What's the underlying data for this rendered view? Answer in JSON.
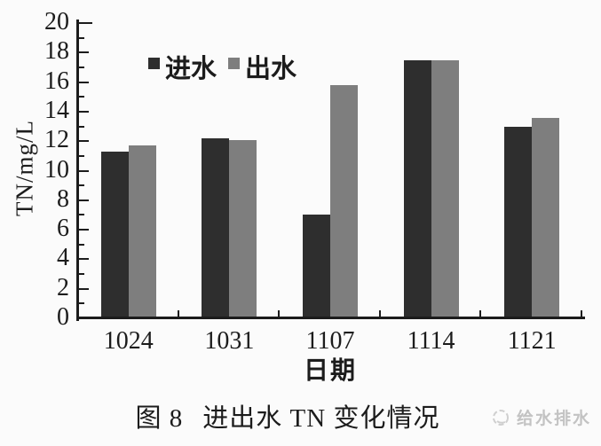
{
  "figure": {
    "caption_prefix": "图 8",
    "caption_text": "进出水 TN 变化情况",
    "watermark": "给水排水"
  },
  "chart_data": {
    "type": "bar",
    "title": "图 8 进出水 TN 变化情况",
    "xlabel": "日期",
    "ylabel": "TN/mg/L",
    "ylim": [
      0,
      20
    ],
    "ytick_step": 2,
    "grid": false,
    "legend_position": "top-inside",
    "axis_color": "#1c1c1c",
    "background_color": "#fbfbfb",
    "categories": [
      "1024",
      "1031",
      "1107",
      "1114",
      "1121"
    ],
    "series": [
      {
        "name": "进水",
        "color": "#2e2e2e",
        "values": [
          11.3,
          12.2,
          7.0,
          17.5,
          13.0
        ]
      },
      {
        "name": "出水",
        "color": "#7e7e7e",
        "values": [
          11.7,
          12.1,
          15.8,
          17.5,
          13.6
        ]
      }
    ]
  }
}
